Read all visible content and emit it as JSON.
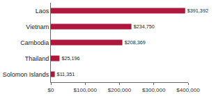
{
  "chart_data": {
    "type": "bar",
    "orientation": "horizontal",
    "categories": [
      "Laos",
      "Vietnam",
      "Cambodia",
      "Thailand",
      "Solomon Islands"
    ],
    "values": [
      391392,
      234750,
      208369,
      25196,
      11351
    ],
    "value_labels": [
      "$391,392",
      "$234,750",
      "$208,369",
      "$25,196",
      "$11,351"
    ],
    "data_labels": true,
    "color": "#b0173c",
    "xlim": [
      0,
      400000
    ],
    "xticks": [
      {
        "value": 0,
        "label": "$0"
      },
      {
        "value": 100000,
        "label": "$100,000"
      },
      {
        "value": 200000,
        "label": "$200,000"
      },
      {
        "value": 300000,
        "label": "$300,000"
      },
      {
        "value": 400000,
        "label": "$400,000"
      }
    ],
    "grid": false
  }
}
